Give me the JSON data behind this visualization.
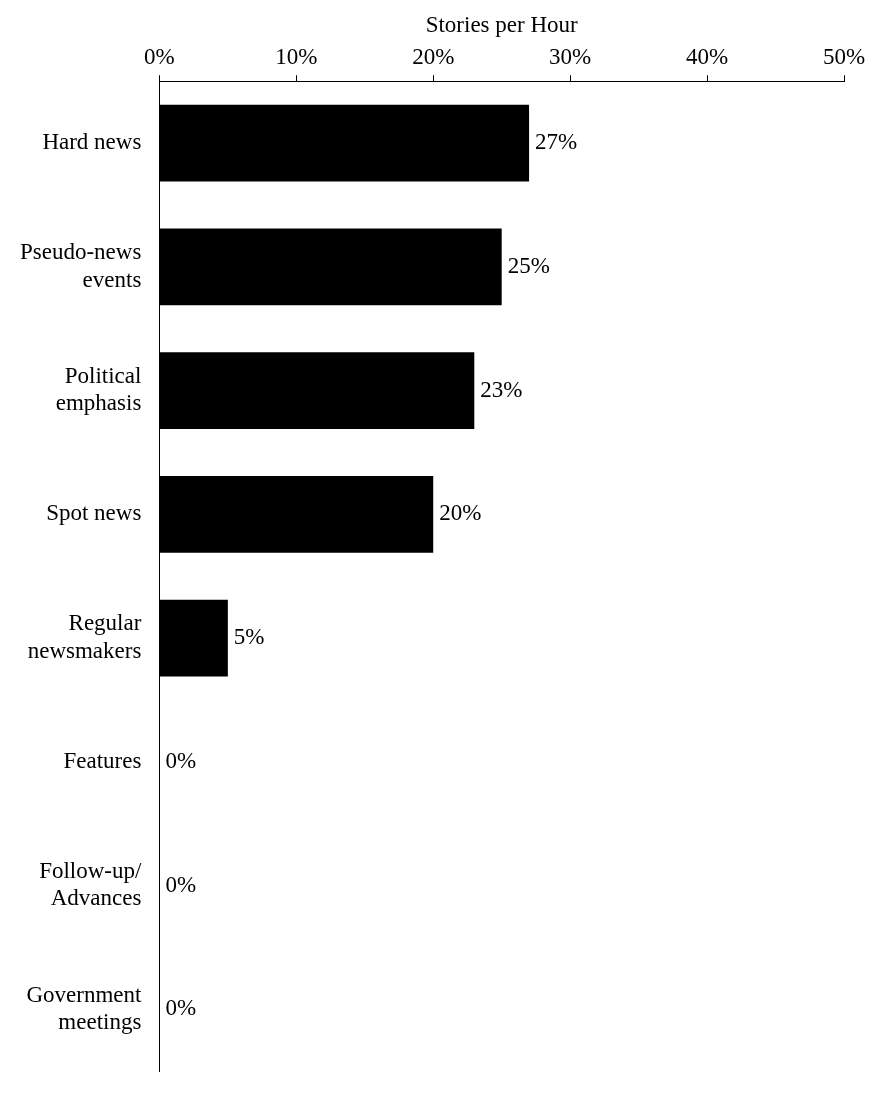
{
  "chart_data": {
    "type": "bar",
    "orientation": "horizontal",
    "xlabel": "Stories per Hour",
    "categories": [
      "Hard news",
      "Pseudo-news events",
      "Political emphasis",
      "Spot news",
      "Regular newsmakers",
      "Features",
      "Follow-up/ Advances",
      "Government meetings"
    ],
    "values": [
      27,
      25,
      23,
      20,
      5,
      0,
      0,
      0
    ],
    "color": "#000000",
    "value_labels": [
      "27%",
      "25%",
      "23%",
      "20%",
      "5%",
      "0%",
      "0%",
      "0%"
    ],
    "xlim": [
      0,
      50
    ],
    "xticks": [
      {
        "value": 0,
        "label": "0%"
      },
      {
        "value": 10,
        "label": "10%"
      },
      {
        "value": 20,
        "label": "20%"
      },
      {
        "value": 30,
        "label": "30%"
      },
      {
        "value": 40,
        "label": "40%"
      },
      {
        "value": 50,
        "label": "50%"
      }
    ],
    "grid": false
  }
}
